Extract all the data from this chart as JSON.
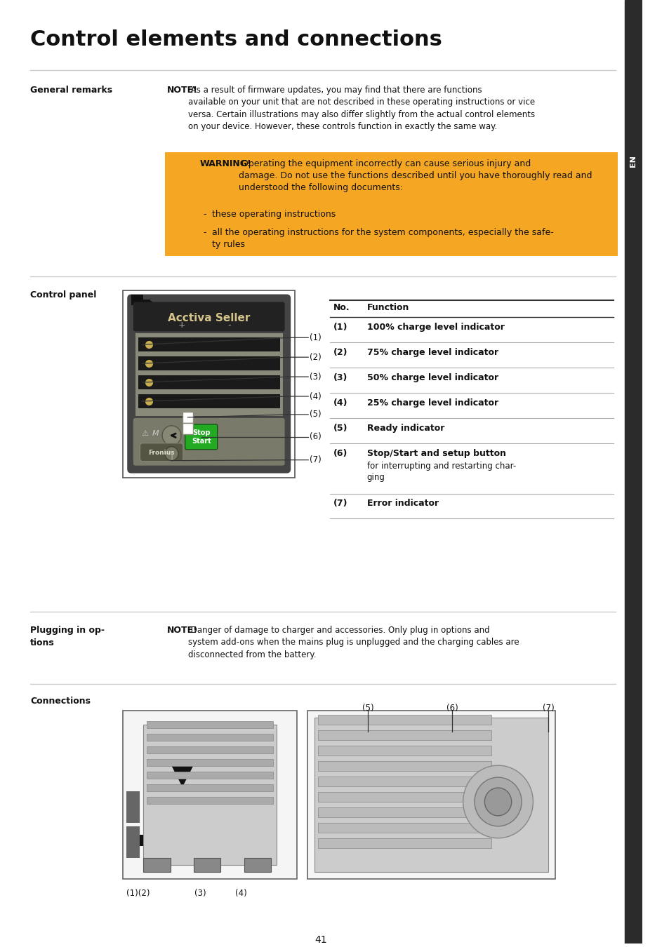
{
  "title": "Control elements and connections",
  "page_number": "41",
  "bg": "#ffffff",
  "sidebar_color": "#2b2b2b",
  "sidebar_text": "EN",
  "general_remarks_label": "General remarks",
  "note_bold": "NOTE!",
  "note_text": " As a result of firmware updates, you may find that there are functions\navailable on your unit that are not described in these operating instructions or vice\nversa. Certain illustrations may also differ slightly from the actual control elements\non your device. However, these controls function in exactly the same way.",
  "warning_bg": "#F5A623",
  "warning_bold": "WARNING!",
  "warning_text": " Operating the equipment incorrectly can cause serious injury and\ndamage. Do not use the functions described until you have thoroughly read and\nunderstood the following documents:",
  "bullets": [
    "these operating instructions",
    "all the operating instructions for the system components, especially the safe-\nty rules"
  ],
  "control_panel_label": "Control panel",
  "table_header_no": "No.",
  "table_header_fn": "Function",
  "table_rows": [
    [
      "(1)",
      "100% charge level indicator",
      false
    ],
    [
      "(2)",
      "75% charge level indicator",
      false
    ],
    [
      "(3)",
      "50% charge level indicator",
      false
    ],
    [
      "(4)",
      "25% charge level indicator",
      false
    ],
    [
      "(5)",
      "Ready indicator",
      false
    ],
    [
      "(6)",
      "Stop/Start and setup button",
      true
    ],
    [
      "(7)",
      "Error indicator",
      false
    ]
  ],
  "row6_sub": "for interrupting and restarting char-\nging",
  "plugging_label": "Plugging in op-\ntions",
  "plug_note_bold": "NOTE!",
  "plug_note_text": " Danger of damage to charger and accessories. Only plug in options and\nsystem add-ons when the mains plug is unplugged and the charging cables are\ndisconnected from the battery.",
  "connections_label": "Connections",
  "conn_left_labels": [
    "(1)(2)",
    "(3)",
    "(4)"
  ],
  "conn_right_labels": [
    "(5)",
    "(6)",
    "(7)"
  ]
}
